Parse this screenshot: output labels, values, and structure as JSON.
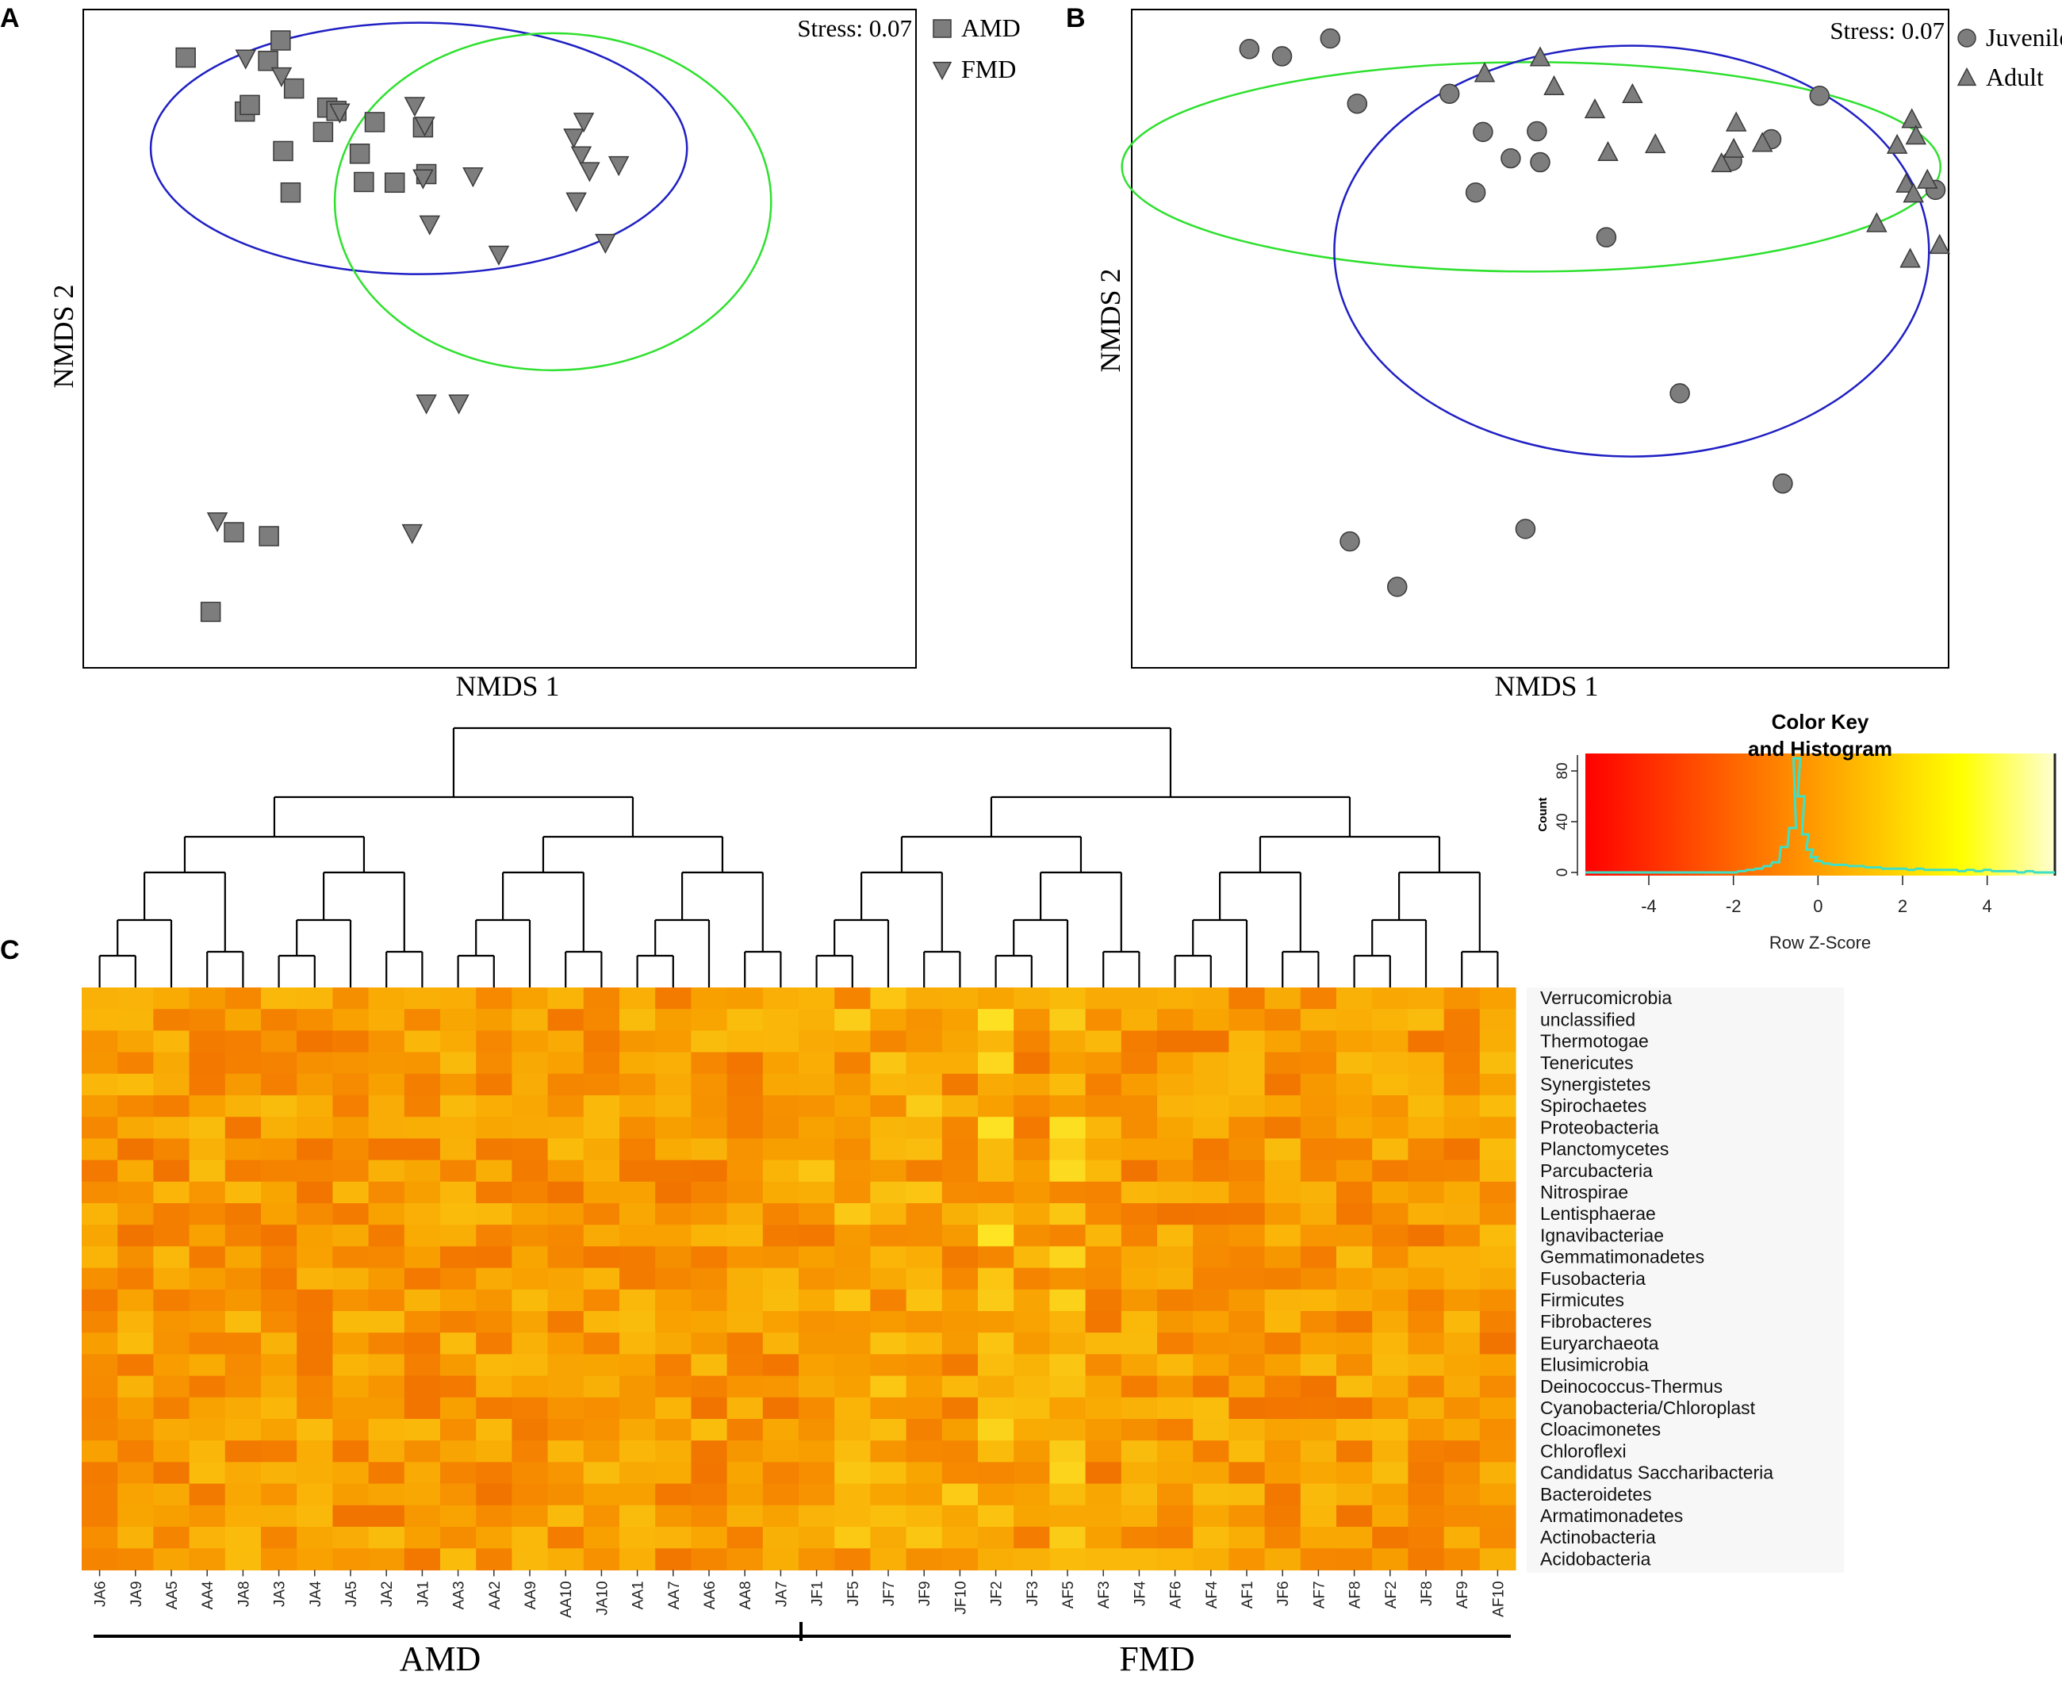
{
  "panel_labels": {
    "a": "A",
    "b": "B",
    "c": "C"
  },
  "colors": {
    "marker_fill": "#7d7d7d",
    "marker_stroke": "#3a3a3a",
    "ellipse_blue": "#1f1fc4",
    "ellipse_green": "#2ee02e",
    "hist_line": "#3ee0c6"
  },
  "chart_data": [
    {
      "type": "scatter",
      "panel": "A",
      "title": "",
      "stress_label": "Stress: 0.07",
      "xlabel": "NMDS 1",
      "ylabel": "NMDS 2",
      "xlim": [
        0,
        100
      ],
      "ylim": [
        0,
        100
      ],
      "legend_position": "outside-right",
      "series": [
        {
          "name": "AMD",
          "marker": "square",
          "ellipse_color": "blue",
          "ellipse": {
            "cx": 40.3,
            "cy": 78.9,
            "rx": 32.2,
            "ry": 19.1,
            "rotation_deg": 0
          },
          "x": [
            23.7,
            12.3,
            19.4,
            20.0,
            22.2,
            25.3,
            24.0,
            28.8,
            29.3,
            24.9,
            30.4,
            33.2,
            35.0,
            33.7,
            40.8,
            37.4,
            41.2,
            18.1,
            22.3,
            15.3
          ],
          "y": [
            95.3,
            92.7,
            84.5,
            85.5,
            92.2,
            88.0,
            78.5,
            81.4,
            85.1,
            72.2,
            84.6,
            78.1,
            82.9,
            73.8,
            82.1,
            73.7,
            75.0,
            20.6,
            20.0,
            8.5
          ]
        },
        {
          "name": "FMD",
          "marker": "triangle-down",
          "ellipse_color": "green",
          "ellipse": {
            "cx": 56.4,
            "cy": 70.8,
            "rx": 26.2,
            "ry": 25.6,
            "rotation_deg": 0
          },
          "x": [
            19.5,
            23.8,
            30.8,
            39.8,
            41.0,
            40.8,
            41.6,
            46.8,
            58.9,
            59.8,
            60.1,
            60.8,
            64.3,
            59.2,
            62.7,
            49.9,
            41.2,
            45.1,
            39.5,
            16.1
          ],
          "y": [
            92.6,
            89.9,
            84.4,
            85.4,
            82.4,
            74.4,
            67.4,
            74.7,
            80.6,
            77.9,
            83.0,
            75.5,
            76.4,
            70.9,
            64.6,
            62.8,
            40.2,
            40.2,
            20.5,
            22.3
          ]
        }
      ]
    },
    {
      "type": "scatter",
      "panel": "B",
      "title": "",
      "stress_label": "Stress: 0.07",
      "xlabel": "NMDS 1",
      "ylabel": "NMDS 2",
      "xlim": [
        0,
        100
      ],
      "ylim": [
        0,
        100
      ],
      "legend_position": "outside-right",
      "series": [
        {
          "name": "Juvenile",
          "marker": "circle",
          "ellipse_color": "green",
          "ellipse": {
            "cx": 48.9,
            "cy": 76.1,
            "rx": 50.1,
            "ry": 15.9,
            "rotation_deg": 0
          },
          "x": [
            18.4,
            24.3,
            27.6,
            14.4,
            38.9,
            43.0,
            46.4,
            42.1,
            49.6,
            58.1,
            50.0,
            73.5,
            78.3,
            84.2,
            98.4,
            67.1,
            26.7,
            48.2,
            79.7,
            32.5
          ],
          "y": [
            92.9,
            95.6,
            85.7,
            94.0,
            87.2,
            81.4,
            77.4,
            72.2,
            81.5,
            65.4,
            76.8,
            77.0,
            80.3,
            86.9,
            72.6,
            41.7,
            19.2,
            21.1,
            28.0,
            12.3
          ]
        },
        {
          "name": "Adult",
          "marker": "triangle-up",
          "ellipse_color": "blue",
          "ellipse": {
            "cx": 61.2,
            "cy": 63.3,
            "rx": 36.4,
            "ry": 31.2,
            "rotation_deg": 0
          },
          "x": [
            43.2,
            50.0,
            51.7,
            56.7,
            61.3,
            58.3,
            64.1,
            72.2,
            73.7,
            74.0,
            77.2,
            93.7,
            95.5,
            96.0,
            94.8,
            95.7,
            97.4,
            91.2,
            98.9,
            95.3
          ],
          "y": [
            90.3,
            92.7,
            88.3,
            84.8,
            87.1,
            78.3,
            79.5,
            76.6,
            78.8,
            82.8,
            79.7,
            79.4,
            83.3,
            80.8,
            73.5,
            72.0,
            74.1,
            67.5,
            64.2,
            62.1
          ]
        }
      ]
    },
    {
      "type": "heatmap",
      "panel": "C",
      "title": "",
      "xlabel": "",
      "ylabel": "",
      "color_scale": "Row Z-Score (red low - yellow/white high)",
      "columns": [
        "JA6",
        "JA9",
        "AA5",
        "AA4",
        "JA8",
        "JA3",
        "JA4",
        "JA5",
        "JA2",
        "JA1",
        "AA3",
        "AA2",
        "AA9",
        "AA10",
        "JA10",
        "AA1",
        "AA7",
        "AA6",
        "AA8",
        "JA7",
        "JF1",
        "JF5",
        "JF7",
        "JF9",
        "JF10",
        "JF2",
        "JF3",
        "AF5",
        "AF3",
        "JF4",
        "AF6",
        "AF4",
        "AF1",
        "JF6",
        "AF7",
        "AF8",
        "AF2",
        "JF8",
        "AF9",
        "AF10"
      ],
      "rows": [
        "Verrucomicrobia",
        "unclassified",
        "Thermotogae",
        "Tenericutes",
        "Synergistetes",
        "Spirochaetes",
        "Proteobacteria",
        "Planctomycetes",
        "Parcubacteria",
        "Nitrospirae",
        "Lentisphaerae",
        "Ignavibacteriae",
        "Gemmatimonadetes",
        "Fusobacteria",
        "Firmicutes",
        "Fibrobacteres",
        "Euryarchaeota",
        "Elusimicrobia",
        "Deinococcus-Thermus",
        "Cyanobacteria/Chloroplast",
        "Cloacimonetes",
        "Chloroflexi",
        "Candidatus Saccharibacteria",
        "Bacteroidetes",
        "Armatimonadetes",
        "Actinobacteria",
        "Acidobacteria"
      ],
      "groups": [
        {
          "label": "AMD",
          "first_column": "JA6",
          "last_column": "JA7"
        },
        {
          "label": "FMD",
          "first_column": "JF1",
          "last_column": "AF10"
        }
      ],
      "dendrogram": {
        "orientation": "columns",
        "clusters": [
          [
            "JA6",
            "JA9",
            "AA5",
            "AA4",
            "JA8",
            "JA3",
            "JA4",
            "JA5",
            "JA2",
            "JA1",
            "AA3",
            "AA2",
            "AA9",
            "AA10",
            "JA10",
            "AA1",
            "AA7",
            "AA6",
            "AA8",
            "JA7"
          ],
          [
            "JF1",
            "JF5",
            "JF7",
            "JF9",
            "JF10",
            "JF2",
            "JF3",
            "AF5",
            "AF3",
            "JF4",
            "AF6",
            "AF4",
            "AF1",
            "JF6",
            "AF7",
            "AF8",
            "AF2",
            "JF8",
            "AF9",
            "AF10"
          ]
        ]
      }
    },
    {
      "type": "bar",
      "panel": "color-key",
      "title": "Color Key\nand Histogram",
      "title_lines": [
        "Color Key",
        "and Histogram"
      ],
      "xlabel": "Row Z-Score",
      "ylabel": "Count",
      "xlim": [
        -5.5,
        5.6
      ],
      "ylim": [
        0,
        90
      ],
      "x_ticks": [
        -4,
        -2,
        0,
        2,
        4
      ],
      "y_ticks": [
        0,
        40,
        80
      ],
      "bin_centers": [
        -2.0,
        -1.8,
        -1.6,
        -1.4,
        -1.2,
        -1.0,
        -0.8,
        -0.6,
        -0.5,
        -0.4,
        -0.3,
        -0.2,
        -0.1,
        0.0,
        0.2,
        0.4,
        0.6,
        0.8,
        1.0,
        1.2,
        1.4,
        1.6,
        1.8,
        2.0,
        2.2,
        2.4,
        2.6,
        2.8,
        3.0,
        3.2,
        3.4,
        3.6,
        3.8,
        4.0,
        4.2,
        4.4,
        4.6,
        4.8,
        5.0,
        5.2,
        5.4
      ],
      "counts": [
        0,
        1,
        2,
        3,
        5,
        8,
        20,
        35,
        90,
        60,
        30,
        18,
        12,
        9,
        7,
        6,
        6,
        5,
        5,
        4,
        4,
        3,
        3,
        3,
        2,
        3,
        2,
        2,
        2,
        2,
        1,
        2,
        1,
        2,
        1,
        1,
        1,
        0,
        1,
        0,
        0
      ]
    }
  ]
}
